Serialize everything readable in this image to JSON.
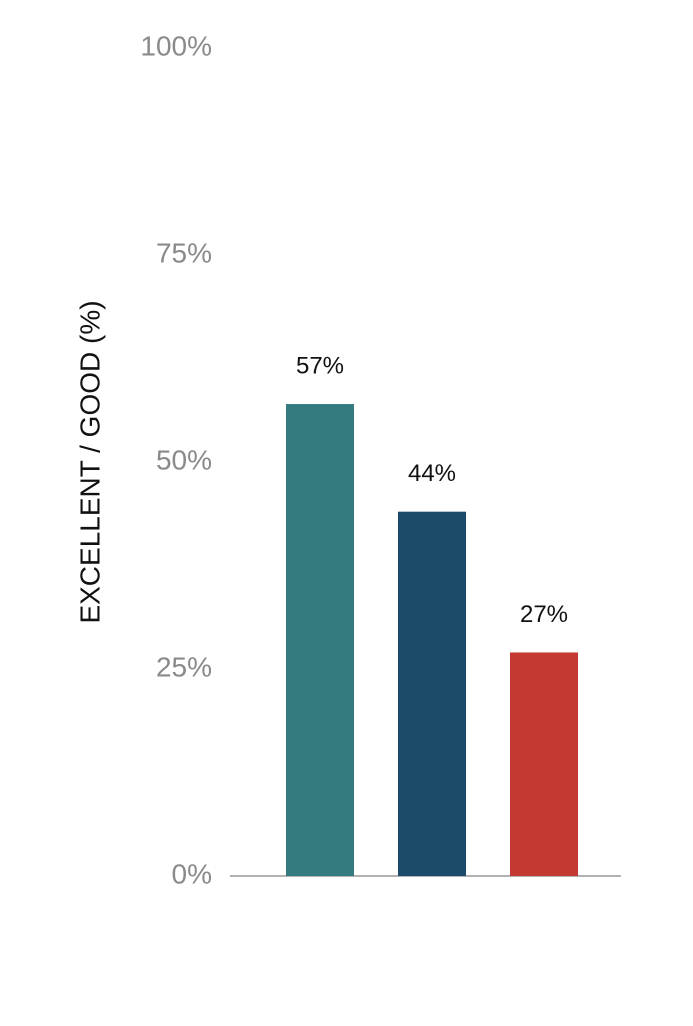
{
  "chart_data": {
    "type": "bar",
    "y_label": "EXCELLENT / GOOD (%)",
    "categories": [
      null,
      null,
      null
    ],
    "values": [
      57,
      44,
      27
    ],
    "value_labels": [
      "57%",
      "44%",
      "27%"
    ],
    "colors": [
      "#337b7f",
      "#1b4a6b",
      "#c43932"
    ],
    "ylim": [
      0,
      100
    ],
    "yticks": [
      {
        "value": 0,
        "label": "0%"
      },
      {
        "value": 25,
        "label": "25%"
      },
      {
        "value": 50,
        "label": "50%"
      },
      {
        "value": 75,
        "label": "75%"
      },
      {
        "value": 100,
        "label": "100%"
      }
    ],
    "grid": false
  }
}
